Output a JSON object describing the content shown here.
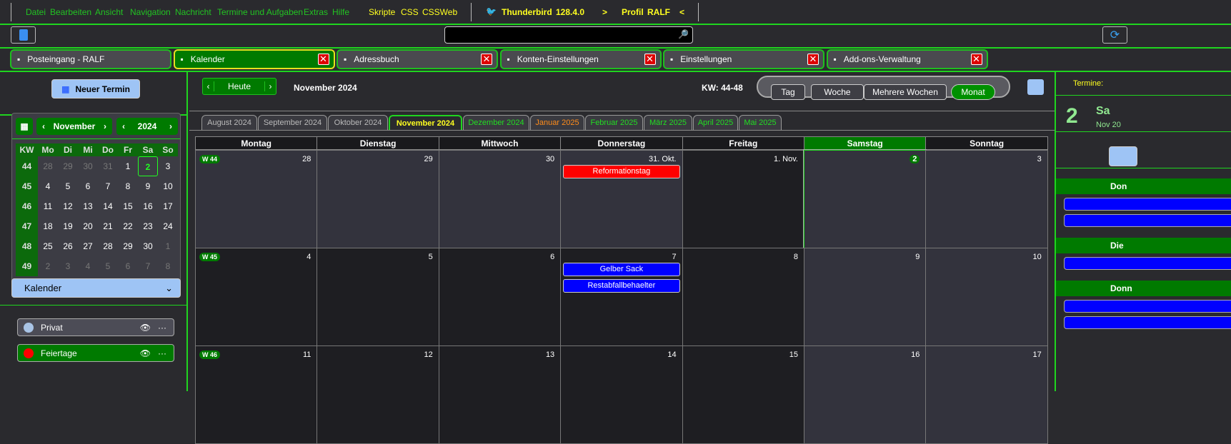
{
  "menu": {
    "items": [
      "Datei",
      "Bearbeiten",
      "Ansicht",
      "Navigation",
      "Nachricht",
      "Termine und Aufgaben",
      "Extras",
      "Hilfe"
    ],
    "extras": [
      "Skripte",
      "CSS",
      "CSSWeb"
    ],
    "app": "Thunderbird",
    "version": "128.4.0",
    "gt": ">",
    "profile_label": "Profil",
    "profile": "RALF",
    "lt": "<"
  },
  "tabs": [
    {
      "label": "Posteingang - RALF",
      "icon": "inbox-icon"
    },
    {
      "label": "Kalender",
      "icon": "calendar-icon",
      "active": true
    },
    {
      "label": "Adressbuch",
      "icon": "addressbook-icon"
    },
    {
      "label": "Konten-Einstellungen",
      "icon": "account-icon"
    },
    {
      "label": "Einstellungen",
      "icon": "gear-icon"
    },
    {
      "label": "Add-ons-Verwaltung",
      "icon": "puzzle-icon"
    }
  ],
  "sidebar": {
    "new_event": "Neuer Termin",
    "month": "November",
    "year": "2024",
    "headers": [
      "KW",
      "Mo",
      "Di",
      "Mi",
      "Do",
      "Fr",
      "Sa",
      "So"
    ],
    "weeks": [
      {
        "kw": "44",
        "days": [
          "28",
          "29",
          "30",
          "31",
          "1",
          "2",
          "3"
        ]
      },
      {
        "kw": "45",
        "days": [
          "4",
          "5",
          "6",
          "7",
          "8",
          "9",
          "10"
        ]
      },
      {
        "kw": "46",
        "days": [
          "11",
          "12",
          "13",
          "14",
          "15",
          "16",
          "17"
        ]
      },
      {
        "kw": "47",
        "days": [
          "18",
          "19",
          "20",
          "21",
          "22",
          "23",
          "24"
        ]
      },
      {
        "kw": "48",
        "days": [
          "25",
          "26",
          "27",
          "28",
          "29",
          "30",
          "1"
        ]
      },
      {
        "kw": "49",
        "days": [
          "2",
          "3",
          "4",
          "5",
          "6",
          "7",
          "8"
        ]
      }
    ],
    "today": "2",
    "calendar_dropdown": "Kalender",
    "calendars": [
      {
        "name": "Privat",
        "color": "#a9c4e6"
      },
      {
        "name": "Feiertage",
        "color": "#ff0000"
      }
    ]
  },
  "main": {
    "today_btn": "Heute",
    "title": "November 2024",
    "kw": "KW: 44-48",
    "views": [
      "Tag",
      "Woche",
      "Mehrere Wochen",
      "Monat"
    ],
    "active_view": "Monat",
    "month_tabs": [
      {
        "label": "August 2024",
        "color": "#bbbbbb"
      },
      {
        "label": "September 2024",
        "color": "#bbbbbb"
      },
      {
        "label": "Oktober 2024",
        "color": "#bbbbbb"
      },
      {
        "label": "November 2024",
        "color": "#ffff20"
      },
      {
        "label": "Dezember 2024",
        "color": "#22dd22"
      },
      {
        "label": "Januar 2025",
        "color": "#ff8c1a"
      },
      {
        "label": "Februar 2025",
        "color": "#22dd22"
      },
      {
        "label": "März 2025",
        "color": "#22dd22"
      },
      {
        "label": "April 2025",
        "color": "#22dd22"
      },
      {
        "label": "Mai 2025",
        "color": "#22dd22"
      }
    ],
    "day_headers": [
      "Montag",
      "Dienstag",
      "Mittwoch",
      "Donnerstag",
      "Freitag",
      "Samstag",
      "Sonntag"
    ],
    "rows": [
      {
        "week": "W 44",
        "days": [
          "28",
          "29",
          "30",
          "31. Okt.",
          "1. Nov.",
          "2",
          "3"
        ]
      },
      {
        "week": "W 45",
        "days": [
          "4",
          "5",
          "6",
          "7",
          "8",
          "9",
          "10"
        ]
      },
      {
        "week": "W 46",
        "days": [
          "11",
          "12",
          "13",
          "14",
          "15",
          "16",
          "17"
        ]
      }
    ],
    "events": [
      {
        "row": 0,
        "col": 3,
        "title": "Reformationstag",
        "color": "#ff0000"
      },
      {
        "row": 1,
        "col": 3,
        "title": "Gelber Sack",
        "color": "#0000ff"
      },
      {
        "row": 1,
        "col": 3,
        "title": "Restabfallbehaelter",
        "color": "#0000ff"
      }
    ]
  },
  "agenda": {
    "label": "Termine:",
    "day_num": "2",
    "day_name": "Sa",
    "month": "Nov 20",
    "groups": [
      {
        "title": "Don",
        "count": 2
      },
      {
        "title": "Die",
        "count": 1
      },
      {
        "title": "Donn",
        "count": 2
      }
    ]
  }
}
